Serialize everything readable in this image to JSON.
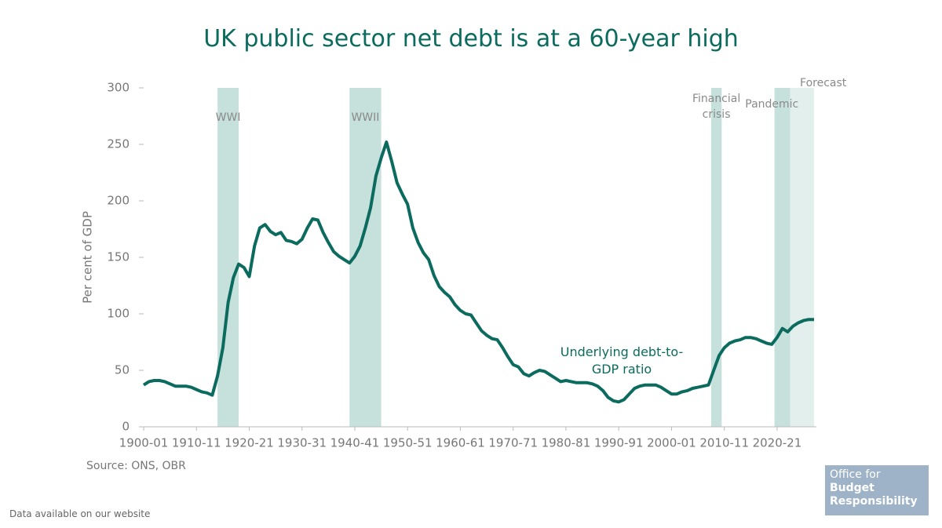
{
  "chart_data": {
    "type": "line",
    "title": "UK public sector net debt is at a 60-year high",
    "y_label": "Per cent of GDP",
    "source": "Source: ONS, OBR",
    "x": [
      1900,
      1901,
      1902,
      1903,
      1904,
      1905,
      1906,
      1907,
      1908,
      1909,
      1910,
      1911,
      1912,
      1913,
      1914,
      1915,
      1916,
      1917,
      1918,
      1919,
      1920,
      1921,
      1922,
      1923,
      1924,
      1925,
      1926,
      1927,
      1928,
      1929,
      1930,
      1931,
      1932,
      1933,
      1934,
      1935,
      1936,
      1937,
      1938,
      1939,
      1940,
      1941,
      1942,
      1943,
      1944,
      1945,
      1946,
      1947,
      1948,
      1949,
      1950,
      1951,
      1952,
      1953,
      1954,
      1955,
      1956,
      1957,
      1958,
      1959,
      1960,
      1961,
      1962,
      1963,
      1964,
      1965,
      1966,
      1967,
      1968,
      1969,
      1970,
      1971,
      1972,
      1973,
      1974,
      1975,
      1976,
      1977,
      1978,
      1979,
      1980,
      1981,
      1982,
      1983,
      1984,
      1985,
      1986,
      1987,
      1988,
      1989,
      1990,
      1991,
      1992,
      1993,
      1994,
      1995,
      1996,
      1997,
      1998,
      1999,
      2000,
      2001,
      2002,
      2003,
      2004,
      2005,
      2006,
      2007,
      2008,
      2009,
      2010,
      2011,
      2012,
      2013,
      2014,
      2015,
      2016,
      2017,
      2018,
      2019,
      2020,
      2021,
      2022,
      2023,
      2024,
      2025,
      2026,
      2027
    ],
    "series": [
      {
        "name": "Underlying debt-to-GDP ratio",
        "color": "#0b6b5e",
        "values": [
          37,
          40,
          41,
          41,
          40,
          38,
          36,
          36,
          36,
          35,
          33,
          31,
          30,
          28,
          45,
          70,
          110,
          132,
          144,
          141,
          133,
          160,
          176,
          179,
          173,
          170,
          172,
          165,
          164,
          162,
          166,
          176,
          184,
          183,
          172,
          163,
          155,
          151,
          148,
          145,
          151,
          160,
          176,
          194,
          222,
          238,
          252,
          235,
          216,
          206,
          197,
          176,
          163,
          154,
          148,
          134,
          124,
          119,
          115,
          108,
          103,
          100,
          99,
          92,
          85,
          81,
          78,
          77,
          70,
          62,
          55,
          53,
          47,
          45,
          48,
          50,
          49,
          46,
          43,
          40,
          41,
          40,
          39,
          39,
          39,
          38,
          36,
          32,
          26,
          23,
          22,
          24,
          29,
          34,
          36,
          37,
          37,
          37,
          35,
          32,
          29,
          29,
          31,
          32,
          34,
          35,
          36,
          37,
          50,
          63,
          70,
          74,
          76,
          77,
          79,
          79,
          78,
          76,
          74,
          73,
          79,
          87,
          84,
          89,
          92,
          94,
          95,
          95
        ]
      }
    ],
    "xlim": [
      1900,
      2027
    ],
    "xticks": [
      {
        "value": 1900,
        "label": "1900-01"
      },
      {
        "value": 1910,
        "label": "1910-11"
      },
      {
        "value": 1920,
        "label": "1920-21"
      },
      {
        "value": 1930,
        "label": "1930-31"
      },
      {
        "value": 1940,
        "label": "1940-41"
      },
      {
        "value": 1950,
        "label": "1950-51"
      },
      {
        "value": 1960,
        "label": "1960-61"
      },
      {
        "value": 1970,
        "label": "1970-71"
      },
      {
        "value": 1980,
        "label": "1980-81"
      },
      {
        "value": 1990,
        "label": "1990-91"
      },
      {
        "value": 2000,
        "label": "2000-01"
      },
      {
        "value": 2010,
        "label": "2010-11"
      },
      {
        "value": 2020,
        "label": "2020-21"
      }
    ],
    "ylim": [
      0,
      300
    ],
    "yticks": [
      0,
      50,
      100,
      150,
      200,
      250,
      300
    ],
    "shaded_periods": [
      {
        "label": "WWI",
        "start": 1914,
        "end": 1918,
        "color": "#c6e0dc"
      },
      {
        "label": "WWII",
        "start": 1939,
        "end": 1945,
        "color": "#c6e0dc"
      },
      {
        "label": "Financial crisis",
        "start": 2007.5,
        "end": 2009.5,
        "color": "#c6e0dc"
      },
      {
        "label": "Pandemic",
        "start": 2019.5,
        "end": 2022.5,
        "color": "#c6e0dc"
      },
      {
        "label": "Forecast",
        "start": 2022.5,
        "end": 2027,
        "color": "#e2efed"
      }
    ]
  },
  "footer": "Data available on our website",
  "logo": {
    "line1": "Office for",
    "line2": "Budget",
    "line3": "Responsibility"
  }
}
